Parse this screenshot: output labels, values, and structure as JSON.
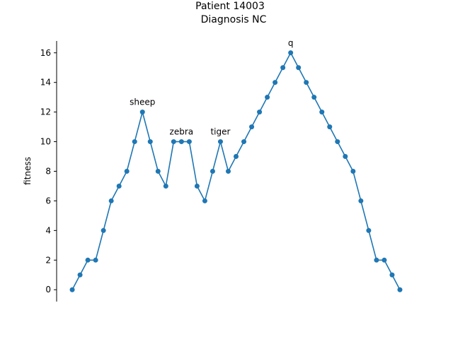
{
  "chart_data": {
    "type": "line",
    "title": [
      "Patient 14003",
      "Diagnosis NC"
    ],
    "xlabel": "",
    "ylabel": "fitness",
    "ylim": [
      -0.8,
      16.8
    ],
    "xlim": [
      -2,
      43
    ],
    "yticks": [
      0,
      2,
      4,
      6,
      8,
      10,
      12,
      14,
      16
    ],
    "grid": false,
    "legend": "none",
    "series": [
      {
        "color": "#1f77b4",
        "x": [
          0,
          1,
          2,
          3,
          4,
          5,
          6,
          7,
          8,
          9,
          10,
          11,
          12,
          13,
          14,
          15,
          16,
          17,
          18,
          19,
          20,
          21,
          22,
          23,
          24,
          25,
          26,
          27,
          28,
          29,
          30,
          31,
          32,
          33,
          34,
          35,
          36,
          37,
          38,
          39,
          40,
          41,
          42
        ],
        "y": [
          0,
          1,
          2,
          2,
          4,
          6,
          7,
          8,
          10,
          12,
          10,
          8,
          7,
          10,
          10,
          10,
          7,
          6,
          8,
          10,
          8,
          9,
          10,
          11,
          12,
          13,
          14,
          15,
          16,
          15,
          14,
          13,
          12,
          11,
          10,
          9,
          8,
          6,
          4,
          2,
          2,
          1,
          0
        ]
      }
    ],
    "annotations": [
      {
        "text": "sheep",
        "x": 9,
        "y": 12
      },
      {
        "text": "zebra",
        "x": 14,
        "y": 10
      },
      {
        "text": "tiger",
        "x": 19,
        "y": 10
      },
      {
        "text": "q",
        "x": 28,
        "y": 16
      }
    ]
  }
}
